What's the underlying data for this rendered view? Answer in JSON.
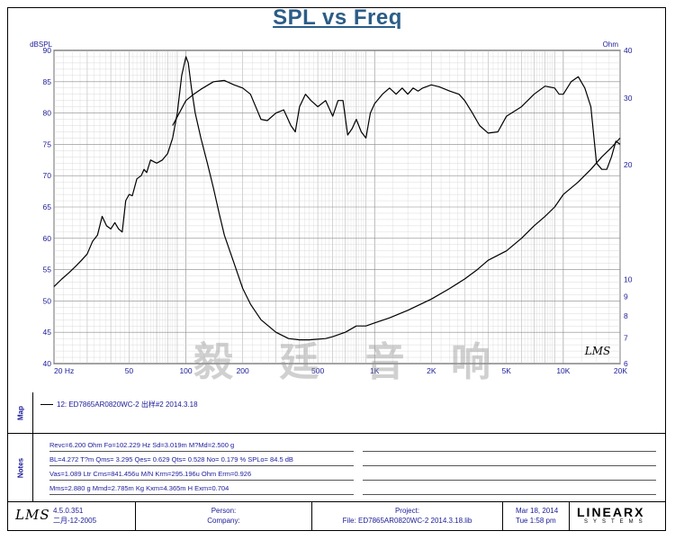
{
  "title": "SPL vs Freq",
  "chart_data": {
    "type": "line",
    "title": "SPL vs Freq",
    "x_scale": "log",
    "xlim": [
      20,
      20000
    ],
    "x_ticks": [
      20,
      50,
      100,
      200,
      500,
      1000,
      2000,
      5000,
      10000,
      20000
    ],
    "x_tick_labels": [
      "20 Hz",
      "50",
      "100",
      "200",
      "500",
      "1K",
      "2K",
      "5K",
      "10K",
      "20K"
    ],
    "ylabel_left": "dBSPL",
    "ylim_left": [
      40,
      90
    ],
    "y_ticks_left": [
      40,
      45,
      50,
      55,
      60,
      65,
      70,
      75,
      80,
      85,
      90
    ],
    "ylabel_right": "Ohm",
    "y_scale_right": "log",
    "ylim_right": [
      6,
      40
    ],
    "y_ticks_right": [
      6,
      7,
      8,
      9,
      10,
      20,
      30,
      40
    ],
    "series": [
      {
        "name": "SPL",
        "axis": "left",
        "points": [
          [
            20,
            52.3
          ],
          [
            22,
            53.5
          ],
          [
            24,
            54.5
          ],
          [
            26,
            55.5
          ],
          [
            28,
            56.5
          ],
          [
            30,
            57.5
          ],
          [
            32,
            59.5
          ],
          [
            34,
            60.5
          ],
          [
            36,
            63.5
          ],
          [
            38,
            62
          ],
          [
            40,
            61.5
          ],
          [
            42,
            62.5
          ],
          [
            44,
            61.5
          ],
          [
            46,
            61
          ],
          [
            48,
            66
          ],
          [
            50,
            67
          ],
          [
            52,
            66.8
          ],
          [
            55,
            69.5
          ],
          [
            58,
            70
          ],
          [
            60,
            71
          ],
          [
            62,
            70.5
          ],
          [
            65,
            72.5
          ],
          [
            70,
            72
          ],
          [
            75,
            72.5
          ],
          [
            80,
            73.5
          ],
          [
            85,
            76
          ],
          [
            90,
            80
          ],
          [
            95,
            86
          ],
          [
            100,
            89
          ],
          [
            103,
            88
          ],
          [
            107,
            84
          ],
          [
            112,
            80
          ],
          [
            120,
            76
          ],
          [
            130,
            72
          ],
          [
            140,
            68
          ],
          [
            150,
            64
          ],
          [
            160,
            60.5
          ],
          [
            180,
            56
          ],
          [
            200,
            52
          ],
          [
            220,
            49.5
          ],
          [
            250,
            47
          ],
          [
            300,
            45
          ],
          [
            350,
            44
          ],
          [
            400,
            43.8
          ],
          [
            450,
            43.8
          ],
          [
            500,
            43.9
          ],
          [
            550,
            44
          ],
          [
            600,
            44.3
          ],
          [
            700,
            45
          ],
          [
            800,
            46
          ],
          [
            900,
            46
          ],
          [
            1000,
            46.5
          ],
          [
            1200,
            47.3
          ],
          [
            1500,
            48.5
          ],
          [
            2000,
            50.3
          ],
          [
            2500,
            52
          ],
          [
            3000,
            53.5
          ],
          [
            3500,
            55
          ],
          [
            4000,
            56.5
          ],
          [
            5000,
            58
          ],
          [
            6000,
            60
          ],
          [
            7000,
            62
          ],
          [
            8000,
            63.5
          ],
          [
            9000,
            65
          ],
          [
            10000,
            67
          ],
          [
            12000,
            69
          ],
          [
            14000,
            71
          ],
          [
            16000,
            73
          ],
          [
            18000,
            74.5
          ],
          [
            20000,
            76
          ]
        ]
      },
      {
        "name": "SPL (upper)",
        "axis": "left",
        "points": [
          [
            85,
            78
          ],
          [
            100,
            82
          ],
          [
            110,
            83
          ],
          [
            120,
            83.8
          ],
          [
            140,
            85
          ],
          [
            160,
            85.2
          ],
          [
            180,
            84.5
          ],
          [
            200,
            84
          ],
          [
            220,
            83
          ],
          [
            250,
            79
          ],
          [
            270,
            78.8
          ],
          [
            300,
            80
          ],
          [
            330,
            80.5
          ],
          [
            360,
            78
          ],
          [
            380,
            77
          ],
          [
            400,
            81
          ],
          [
            430,
            83
          ],
          [
            460,
            82
          ],
          [
            500,
            81
          ],
          [
            550,
            82
          ],
          [
            600,
            79.5
          ],
          [
            640,
            82
          ],
          [
            680,
            82
          ],
          [
            720,
            76.5
          ],
          [
            760,
            77.5
          ],
          [
            800,
            79
          ],
          [
            850,
            77
          ],
          [
            900,
            76
          ],
          [
            950,
            80
          ],
          [
            1000,
            81.5
          ],
          [
            1100,
            83
          ],
          [
            1200,
            84
          ],
          [
            1300,
            83
          ],
          [
            1400,
            84
          ],
          [
            1500,
            83
          ],
          [
            1600,
            84
          ],
          [
            1700,
            83.5
          ],
          [
            1800,
            84
          ],
          [
            2000,
            84.5
          ],
          [
            2200,
            84.2
          ],
          [
            2500,
            83.5
          ],
          [
            2800,
            83
          ],
          [
            3000,
            82
          ],
          [
            3300,
            80
          ],
          [
            3600,
            78
          ],
          [
            4000,
            76.8
          ],
          [
            4500,
            77
          ],
          [
            5000,
            79.5
          ],
          [
            6000,
            81
          ],
          [
            7000,
            83
          ],
          [
            8000,
            84.3
          ],
          [
            9000,
            84
          ],
          [
            9500,
            83
          ],
          [
            10000,
            83
          ],
          [
            11000,
            85
          ],
          [
            12000,
            85.8
          ],
          [
            13000,
            84
          ],
          [
            14000,
            81
          ],
          [
            15000,
            72
          ],
          [
            16000,
            71
          ],
          [
            17000,
            71
          ],
          [
            18000,
            73
          ],
          [
            19000,
            75.5
          ],
          [
            20000,
            75
          ]
        ]
      }
    ],
    "legend": "12: ED7865AR0820WC-2   出样#2   2014.3.18"
  },
  "map_section": {
    "label": "Map",
    "legend_text": "12: ED7865AR0820WC-2   出样#2   2014.3.18"
  },
  "notes_section": {
    "label": "Notes",
    "lines": [
      "Revc=6.200 Ohm  Fo=102.229 Hz  Sd=3.019m M?Md=2.500 g",
      "BL=4.272 T?m  Qms= 3.295  Qes= 0.629  Qts= 0.528  No= 0.179 %  SPLo= 84.5 dB",
      "Vas=1.089 Ltr  Cms=841.456u M/N  Krm=295.196u Ohm  Erm=0.926",
      "Mms=2.880 g  Mmd=2.785m Kg  Kxm=4.365m H  Exm=0.704"
    ]
  },
  "footer": {
    "logo": "LMS",
    "version": "4.5.0.351",
    "build_date": "二月-12-2005",
    "person_label": "Person:",
    "company_label": "Company:",
    "project_label": "Project:",
    "file_label": "File: ED7865AR0820WC-2   2014.3.18.lib",
    "date": "Mar 18, 2014",
    "time": "Tue  1:58 pm",
    "brand": "LINEARX",
    "brand_sub": "SYSTEMS"
  },
  "plot_logo": "LMS",
  "watermark": "毅 廷 音 响"
}
